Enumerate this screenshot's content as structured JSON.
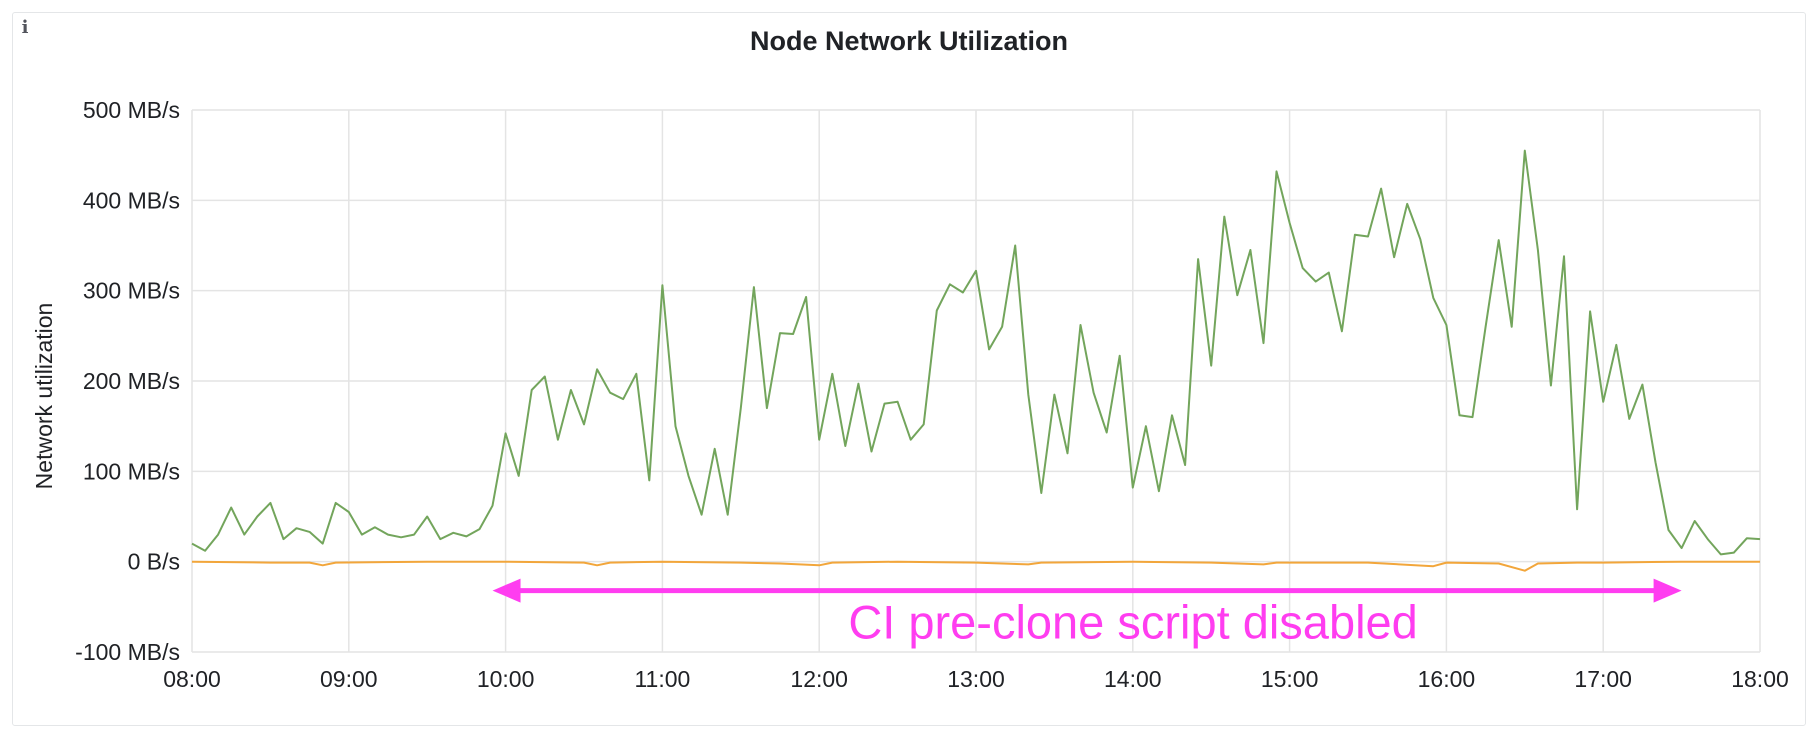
{
  "panel": {
    "info_icon": "info-icon"
  },
  "chart_data": {
    "type": "line",
    "title": "Node Network Utilization",
    "ylabel": "Network utilization",
    "xlabel": "",
    "x_ticks": [
      "08:00",
      "09:00",
      "10:00",
      "11:00",
      "12:00",
      "13:00",
      "14:00",
      "15:00",
      "16:00",
      "17:00",
      "18:00"
    ],
    "y_ticks": [
      "500 MB/s",
      "400 MB/s",
      "300 MB/s",
      "200 MB/s",
      "100 MB/s",
      "0 B/s",
      "-100 MB/s"
    ],
    "x_range": [
      "08:00",
      "18:00"
    ],
    "ylim": [
      -100,
      500
    ],
    "grid": true,
    "colors": {
      "series_green": "#73a55c",
      "series_orange": "#f2a63b",
      "grid": "#e4e4e4",
      "annotation": "#ff3df0"
    },
    "series": [
      {
        "color": "#73a55c",
        "points": [
          [
            "08:00",
            20
          ],
          [
            "08:05",
            12
          ],
          [
            "08:10",
            30
          ],
          [
            "08:15",
            60
          ],
          [
            "08:20",
            30
          ],
          [
            "08:25",
            50
          ],
          [
            "08:30",
            65
          ],
          [
            "08:35",
            25
          ],
          [
            "08:40",
            37
          ],
          [
            "08:45",
            33
          ],
          [
            "08:50",
            20
          ],
          [
            "08:55",
            65
          ],
          [
            "09:00",
            55
          ],
          [
            "09:05",
            30
          ],
          [
            "09:10",
            38
          ],
          [
            "09:15",
            30
          ],
          [
            "09:20",
            27
          ],
          [
            "09:25",
            30
          ],
          [
            "09:30",
            50
          ],
          [
            "09:35",
            25
          ],
          [
            "09:40",
            32
          ],
          [
            "09:45",
            28
          ],
          [
            "09:50",
            36
          ],
          [
            "09:55",
            62
          ],
          [
            "10:00",
            142
          ],
          [
            "10:05",
            95
          ],
          [
            "10:10",
            190
          ],
          [
            "10:15",
            205
          ],
          [
            "10:20",
            135
          ],
          [
            "10:25",
            190
          ],
          [
            "10:30",
            152
          ],
          [
            "10:35",
            213
          ],
          [
            "10:40",
            187
          ],
          [
            "10:45",
            180
          ],
          [
            "10:50",
            208
          ],
          [
            "10:55",
            90
          ],
          [
            "11:00",
            306
          ],
          [
            "11:05",
            150
          ],
          [
            "11:10",
            95
          ],
          [
            "11:15",
            52
          ],
          [
            "11:20",
            125
          ],
          [
            "11:25",
            52
          ],
          [
            "11:30",
            170
          ],
          [
            "11:35",
            304
          ],
          [
            "11:40",
            170
          ],
          [
            "11:45",
            253
          ],
          [
            "11:50",
            252
          ],
          [
            "11:55",
            293
          ],
          [
            "12:00",
            135
          ],
          [
            "12:05",
            208
          ],
          [
            "12:10",
            128
          ],
          [
            "12:15",
            197
          ],
          [
            "12:20",
            122
          ],
          [
            "12:25",
            175
          ],
          [
            "12:30",
            177
          ],
          [
            "12:35",
            135
          ],
          [
            "12:40",
            152
          ],
          [
            "12:45",
            278
          ],
          [
            "12:50",
            307
          ],
          [
            "12:55",
            298
          ],
          [
            "13:00",
            322
          ],
          [
            "13:05",
            235
          ],
          [
            "13:10",
            260
          ],
          [
            "13:15",
            350
          ],
          [
            "13:20",
            185
          ],
          [
            "13:25",
            76
          ],
          [
            "13:30",
            185
          ],
          [
            "13:35",
            120
          ],
          [
            "13:40",
            262
          ],
          [
            "13:45",
            187
          ],
          [
            "13:50",
            143
          ],
          [
            "13:55",
            228
          ],
          [
            "14:00",
            82
          ],
          [
            "14:05",
            150
          ],
          [
            "14:10",
            78
          ],
          [
            "14:15",
            162
          ],
          [
            "14:20",
            107
          ],
          [
            "14:25",
            335
          ],
          [
            "14:30",
            217
          ],
          [
            "14:35",
            382
          ],
          [
            "14:40",
            295
          ],
          [
            "14:45",
            345
          ],
          [
            "14:50",
            242
          ],
          [
            "14:55",
            432
          ],
          [
            "15:00",
            375
          ],
          [
            "15:05",
            325
          ],
          [
            "15:10",
            310
          ],
          [
            "15:15",
            320
          ],
          [
            "15:20",
            255
          ],
          [
            "15:25",
            362
          ],
          [
            "15:30",
            360
          ],
          [
            "15:35",
            413
          ],
          [
            "15:40",
            337
          ],
          [
            "15:45",
            396
          ],
          [
            "15:50",
            357
          ],
          [
            "15:55",
            292
          ],
          [
            "16:00",
            262
          ],
          [
            "16:05",
            162
          ],
          [
            "16:10",
            160
          ],
          [
            "16:15",
            260
          ],
          [
            "16:20",
            356
          ],
          [
            "16:25",
            260
          ],
          [
            "16:30",
            455
          ],
          [
            "16:35",
            345
          ],
          [
            "16:40",
            195
          ],
          [
            "16:45",
            338
          ],
          [
            "16:50",
            58
          ],
          [
            "16:55",
            277
          ],
          [
            "17:00",
            177
          ],
          [
            "17:05",
            240
          ],
          [
            "17:10",
            158
          ],
          [
            "17:15",
            196
          ],
          [
            "17:20",
            110
          ],
          [
            "17:25",
            35
          ],
          [
            "17:30",
            15
          ],
          [
            "17:35",
            45
          ],
          [
            "17:40",
            25
          ],
          [
            "17:45",
            8
          ],
          [
            "17:50",
            10
          ],
          [
            "17:55",
            26
          ],
          [
            "18:00",
            25
          ]
        ]
      },
      {
        "color": "#f2a63b",
        "points": [
          [
            "08:00",
            0
          ],
          [
            "08:30",
            -1
          ],
          [
            "08:45",
            -1
          ],
          [
            "08:50",
            -4
          ],
          [
            "08:55",
            -1
          ],
          [
            "09:30",
            0
          ],
          [
            "10:00",
            0
          ],
          [
            "10:30",
            -1
          ],
          [
            "10:35",
            -4
          ],
          [
            "10:40",
            -1
          ],
          [
            "11:00",
            0
          ],
          [
            "11:30",
            -1
          ],
          [
            "11:45",
            -2
          ],
          [
            "12:00",
            -4
          ],
          [
            "12:05",
            -1
          ],
          [
            "12:30",
            0
          ],
          [
            "13:00",
            -1
          ],
          [
            "13:20",
            -3
          ],
          [
            "13:25",
            -1
          ],
          [
            "14:00",
            0
          ],
          [
            "14:30",
            -1
          ],
          [
            "14:50",
            -3
          ],
          [
            "14:55",
            -1
          ],
          [
            "15:30",
            -1
          ],
          [
            "15:55",
            -5
          ],
          [
            "16:00",
            -1
          ],
          [
            "16:20",
            -2
          ],
          [
            "16:30",
            -10
          ],
          [
            "16:35",
            -2
          ],
          [
            "16:50",
            -1
          ],
          [
            "17:00",
            -1
          ],
          [
            "17:30",
            0
          ],
          [
            "18:00",
            0
          ]
        ]
      }
    ],
    "annotations": [
      {
        "text": "CI pre-clone script disabled",
        "x_start": "09:55",
        "x_end": "17:30",
        "y": -32
      }
    ]
  }
}
